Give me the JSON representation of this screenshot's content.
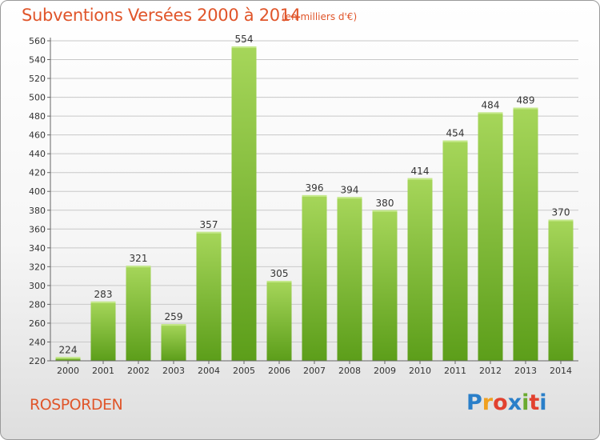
{
  "header": {
    "title": "Subventions Versées 2000 à 2014",
    "subtitle": "(en milliers d'€)"
  },
  "footer": {
    "commune": "ROSPORDEN",
    "brand": [
      "P",
      "r",
      "o",
      "x",
      "i",
      "t",
      "i"
    ],
    "brand_colors": [
      "#2a7fc9",
      "#f0a020",
      "#e2412f",
      "#2a7fc9",
      "#6aaa30",
      "#e2412f",
      "#2a7fc9"
    ]
  },
  "colors": {
    "bar_top": "#a6d65a",
    "bar_bottom": "#5c9e1a",
    "grid": "#c8c8c8",
    "title": "#e0552a"
  },
  "chart_data": {
    "type": "bar",
    "title": "Subventions Versées 2000 à 2014",
    "subtitle": "(en milliers d'€)",
    "categories": [
      "2000",
      "2001",
      "2002",
      "2003",
      "2004",
      "2005",
      "2006",
      "2007",
      "2008",
      "2009",
      "2010",
      "2011",
      "2012",
      "2013",
      "2014"
    ],
    "values": [
      224,
      283,
      321,
      259,
      357,
      554,
      305,
      396,
      394,
      380,
      414,
      454,
      484,
      489,
      370
    ],
    "ylim": [
      220,
      560
    ],
    "yticks": [
      220,
      240,
      260,
      280,
      300,
      320,
      340,
      360,
      380,
      400,
      420,
      440,
      460,
      480,
      500,
      520,
      540,
      560
    ],
    "grid": true,
    "data_labels": true
  }
}
